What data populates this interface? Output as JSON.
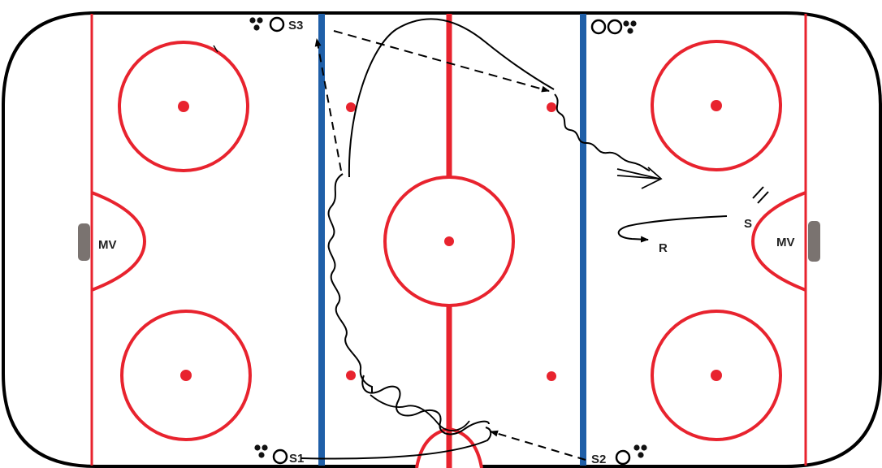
{
  "diagram": {
    "colors": {
      "boards": "#000000",
      "red_line": "#e8232e",
      "blue_line": "#1f5fa8",
      "net": "#7a7370",
      "path": "#000000"
    },
    "labels": {
      "goalie_left": "MV",
      "goalie_right": "MV",
      "station_s1": "S1",
      "station_s2": "S2",
      "station_s3": "S3",
      "shot": "S",
      "rebound": "R"
    }
  }
}
